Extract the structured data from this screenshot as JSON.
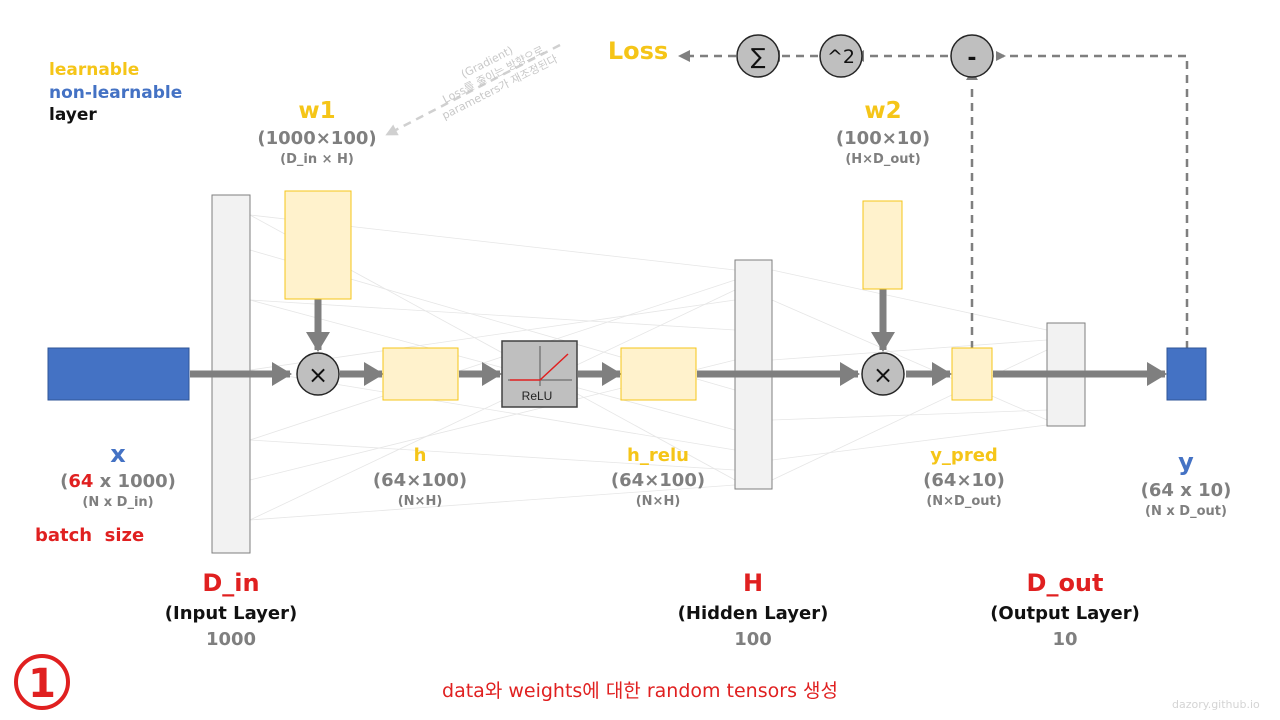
{
  "legend": {
    "learnable": "learnable",
    "non_learnable": "non-learnable",
    "layer": "layer"
  },
  "gradient_note": {
    "line1": "(Gradient)",
    "line2": "Loss를 줄이는 방향으로",
    "line3": "parameters가 재조정된다"
  },
  "loss": {
    "label": "Loss"
  },
  "ops": {
    "sum": "∑",
    "square": "^2",
    "minus": "-",
    "mul": "×",
    "relu": "ReLU"
  },
  "w1": {
    "name": "w1",
    "shape": "(1000×100)",
    "dims": "(D_in × H)"
  },
  "w2": {
    "name": "w2",
    "shape": "(100×10)",
    "dims": "(H×D_out)"
  },
  "x": {
    "name": "x",
    "shape_prefix": "(",
    "batch": "64",
    "shape_suffix": " x 1000)",
    "dims": "(N x D_in)",
    "batch_note": "batch  size"
  },
  "h": {
    "name": "h",
    "shape": "(64×100)",
    "dims": "(N×H)"
  },
  "h_relu": {
    "name": "h_relu",
    "shape": "(64×100)",
    "dims": "(N×H)"
  },
  "y_pred": {
    "name": "y_pred",
    "shape": "(64×10)",
    "dims": "(N×D_out)"
  },
  "y": {
    "name": "y",
    "shape": "(64 x 10)",
    "dims": "(N x D_out)"
  },
  "layers": {
    "input": {
      "name": "D_in",
      "desc": "(Input Layer)",
      "size": "1000"
    },
    "hidden": {
      "name": "H",
      "desc": "(Hidden Layer)",
      "size": "100"
    },
    "output": {
      "name": "D_out",
      "desc": "(Output Layer)",
      "size": "10"
    }
  },
  "step": "①",
  "caption": "data와 weights에 대한 random tensors 생성",
  "watermark": "dazory.github.io",
  "colors": {
    "learnable": "#fff2cc",
    "learnable_border": "#f5c518",
    "non_learnable": "#4472c4",
    "layer_fill": "#f2f2f2",
    "arrow": "#7f7f7f",
    "accent_red": "#e02020"
  }
}
